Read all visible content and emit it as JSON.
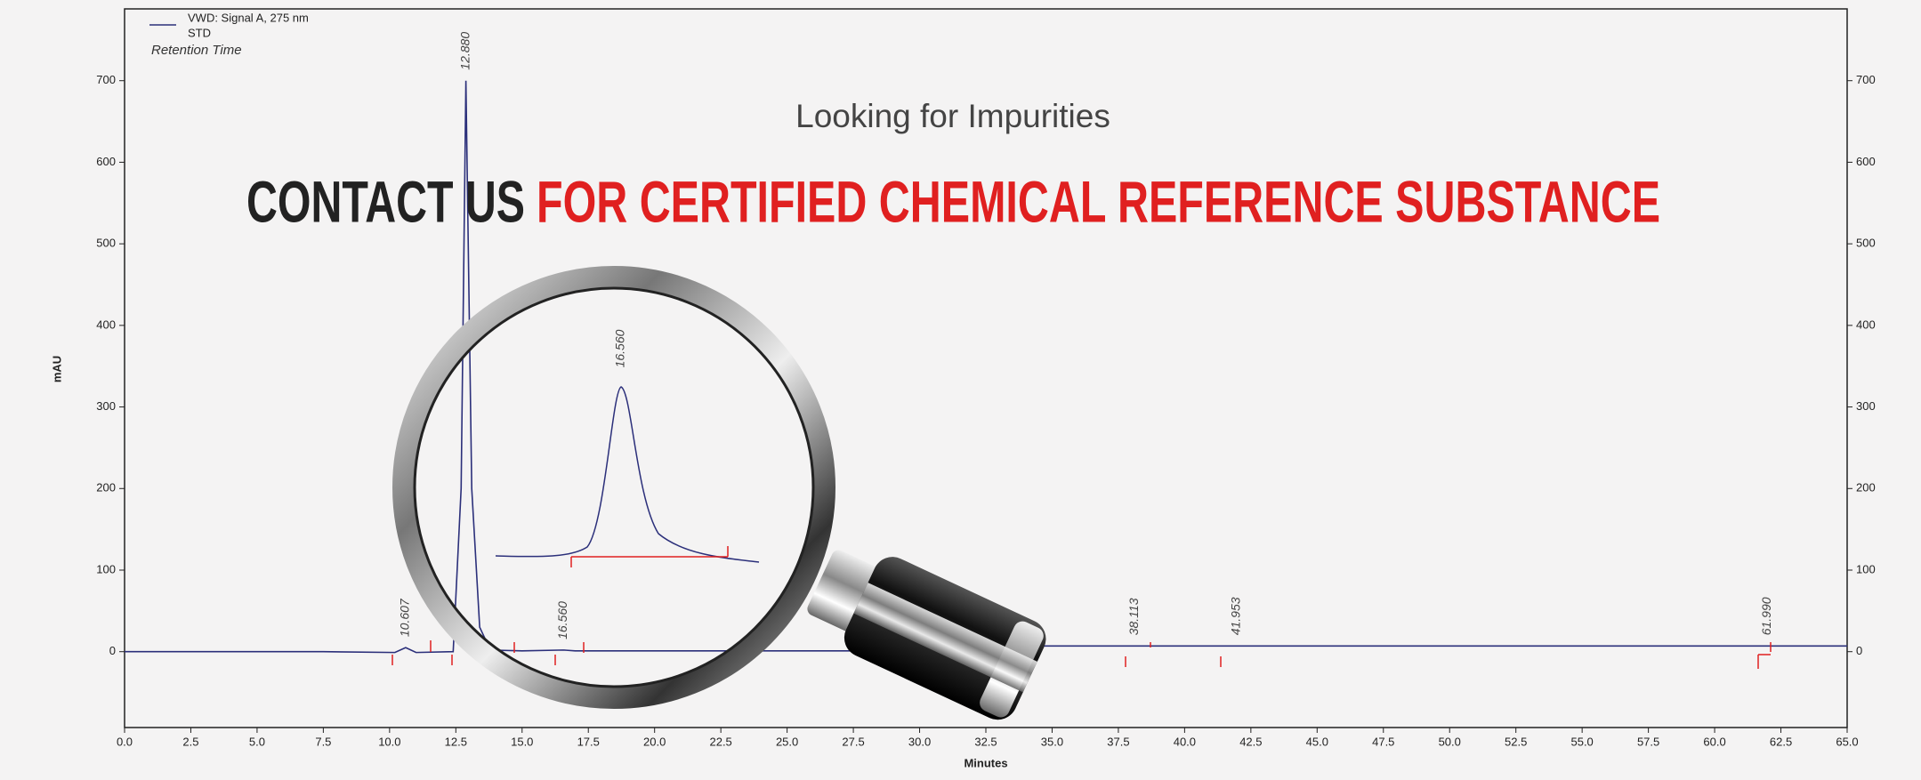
{
  "banner": {
    "subtitle": "Looking for Impurities",
    "heading_dark": "CONTACT US",
    "heading_red": "FOR CERTIFIED CHEMICAL REFERENCE SUBSTANCE"
  },
  "chart_data": {
    "type": "line",
    "x_label": "Minutes",
    "y_label": "mAU",
    "legend_extra": [
      "STD",
      "Retention Time"
    ],
    "x": [
      0,
      7.5,
      10.2,
      10.607,
      11,
      12.4,
      12.7,
      12.88,
      13.1,
      13.4,
      13.8,
      15,
      16.56,
      17,
      20,
      27.5,
      33,
      65
    ],
    "series": [
      {
        "name": "VWD: Signal A, 275 nm",
        "color": "#2b2f7a",
        "values": [
          0,
          0,
          -1,
          5,
          -1,
          0,
          200,
          700,
          200,
          30,
          2,
          1,
          2,
          1,
          1,
          1,
          7,
          7
        ]
      }
    ],
    "peaks": [
      {
        "x": 10.607,
        "label": "10.607"
      },
      {
        "x": 12.88,
        "label": "12.880"
      },
      {
        "x": 16.56,
        "label": "16.560"
      },
      {
        "x": 38.113,
        "label": "38.113"
      },
      {
        "x": 41.953,
        "label": "41.953"
      },
      {
        "x": 61.99,
        "label": "61.990"
      }
    ],
    "xlim": [
      0,
      65
    ],
    "ylim": [
      -93,
      788
    ],
    "xticks": [
      {
        "value": 0,
        "label": "0.0"
      },
      {
        "value": 2.5,
        "label": "2.5"
      },
      {
        "value": 5,
        "label": "5.0"
      },
      {
        "value": 7.5,
        "label": "7.5"
      },
      {
        "value": 10,
        "label": "10.0"
      },
      {
        "value": 12.5,
        "label": "12.5"
      },
      {
        "value": 15,
        "label": "15.0"
      },
      {
        "value": 17.5,
        "label": "17.5"
      },
      {
        "value": 20,
        "label": "20.0"
      },
      {
        "value": 22.5,
        "label": "22.5"
      },
      {
        "value": 25,
        "label": "25.0"
      },
      {
        "value": 27.5,
        "label": "27.5"
      },
      {
        "value": 30,
        "label": "30.0"
      },
      {
        "value": 32.5,
        "label": "32.5"
      },
      {
        "value": 35,
        "label": "35.0"
      },
      {
        "value": 37.5,
        "label": "37.5"
      },
      {
        "value": 40,
        "label": "40.0"
      },
      {
        "value": 42.5,
        "label": "42.5"
      },
      {
        "value": 45,
        "label": "45.0"
      },
      {
        "value": 47.5,
        "label": "47.5"
      },
      {
        "value": 50,
        "label": "50.0"
      },
      {
        "value": 52.5,
        "label": "52.5"
      },
      {
        "value": 55,
        "label": "55.0"
      },
      {
        "value": 57.5,
        "label": "57.5"
      },
      {
        "value": 60,
        "label": "60.0"
      },
      {
        "value": 62.5,
        "label": "62.5"
      },
      {
        "value": 65,
        "label": "65.0"
      }
    ],
    "yticks": [
      0,
      100,
      200,
      300,
      400,
      500,
      600,
      700
    ]
  }
}
